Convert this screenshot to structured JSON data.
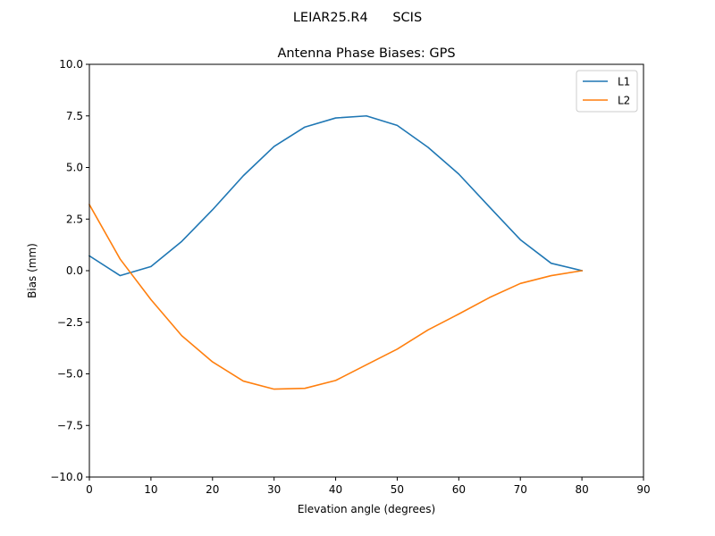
{
  "figure": {
    "suptitle": "LEIAR25.R4      SCIS"
  },
  "chart_data": {
    "type": "line",
    "title": "Antenna Phase Biases: GPS",
    "xlabel": "Elevation angle (degrees)",
    "ylabel": "Bias (mm)",
    "xlim": [
      0,
      90
    ],
    "ylim": [
      -10,
      10
    ],
    "xticks": [
      0,
      10,
      20,
      30,
      40,
      50,
      60,
      70,
      80,
      90
    ],
    "yticks": [
      -10,
      -7.5,
      -5,
      -2.5,
      0,
      2.5,
      5,
      7.5,
      10
    ],
    "ytick_labels": [
      "−10.0",
      "−7.5",
      "−5.0",
      "−2.5",
      "0.0",
      "2.5",
      "5.0",
      "7.5",
      "10.0"
    ],
    "x": [
      0,
      5,
      10,
      15,
      20,
      25,
      30,
      35,
      40,
      45,
      50,
      55,
      60,
      65,
      70,
      75,
      80
    ],
    "grid": false,
    "legend_position": "top-right",
    "series": [
      {
        "name": "L1",
        "color": "#1f77b4",
        "values": [
          0.72,
          -0.24,
          0.2,
          1.42,
          2.95,
          4.6,
          6.02,
          6.96,
          7.4,
          7.5,
          7.04,
          5.98,
          4.68,
          3.08,
          1.5,
          0.36,
          0.0
        ]
      },
      {
        "name": "L2",
        "color": "#ff7f0e",
        "values": [
          3.2,
          0.56,
          -1.4,
          -3.15,
          -4.42,
          -5.35,
          -5.74,
          -5.7,
          -5.32,
          -4.56,
          -3.8,
          -2.87,
          -2.1,
          -1.3,
          -0.62,
          -0.24,
          0.0
        ]
      }
    ]
  }
}
